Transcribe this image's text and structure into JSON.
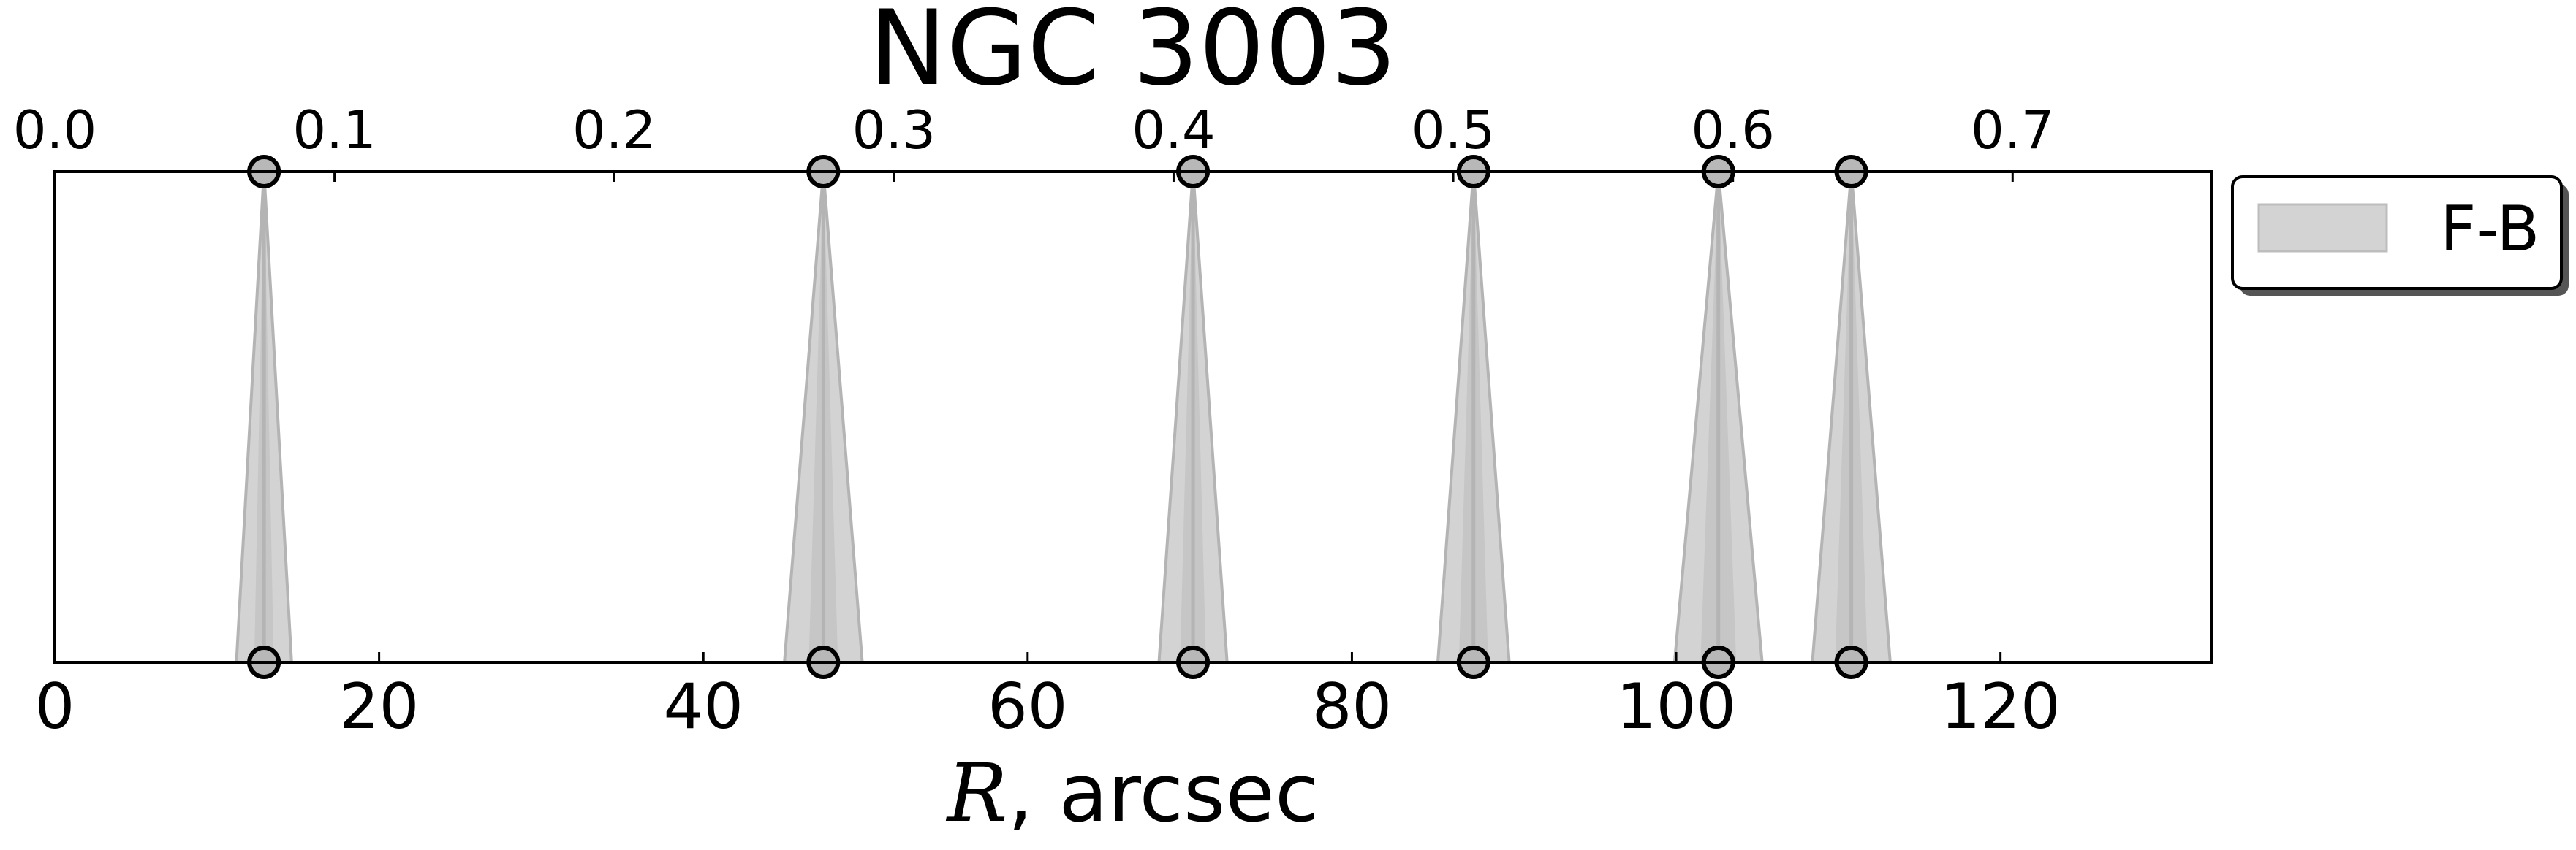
{
  "chart_data": {
    "type": "area",
    "title": "NGC 3003",
    "xlabel": {
      "symbol": "R",
      "rest": ", arcsec"
    },
    "xlim": [
      0,
      133
    ],
    "x_ticks": [
      0,
      20,
      40,
      60,
      80,
      100,
      120
    ],
    "x_tick_labels": [
      "0",
      "20",
      "40",
      "60",
      "80",
      "100",
      "120"
    ],
    "top_axis": {
      "tick_values": [
        0.0,
        0.1,
        0.2,
        0.3,
        0.4,
        0.5,
        0.6,
        0.7
      ],
      "tick_labels": [
        "0.0",
        "0.1",
        "0.2",
        "0.3",
        "0.4",
        "0.5",
        "0.6",
        "0.7"
      ],
      "arcsec_per_unit": 172.5
    },
    "series": [
      {
        "name": "F-B",
        "color": "#d3d3d3",
        "line_color": "#b4b4b4",
        "marker_color": "#b8b8b8",
        "features": [
          {
            "center": 12.9,
            "inner_halfwidth": 0.6,
            "outer_halfwidth": 1.7
          },
          {
            "center": 47.4,
            "inner_halfwidth": 0.9,
            "outer_halfwidth": 2.4
          },
          {
            "center": 70.2,
            "inner_halfwidth": 0.8,
            "outer_halfwidth": 2.1
          },
          {
            "center": 87.5,
            "inner_halfwidth": 0.9,
            "outer_halfwidth": 2.2
          },
          {
            "center": 102.6,
            "inner_halfwidth": 1.1,
            "outer_halfwidth": 2.7
          },
          {
            "center": 110.8,
            "inner_halfwidth": 1.0,
            "outer_halfwidth": 2.4
          }
        ]
      }
    ],
    "legend": {
      "placement": "outside-right-top",
      "entries": [
        "F-B"
      ]
    },
    "grid": false
  }
}
